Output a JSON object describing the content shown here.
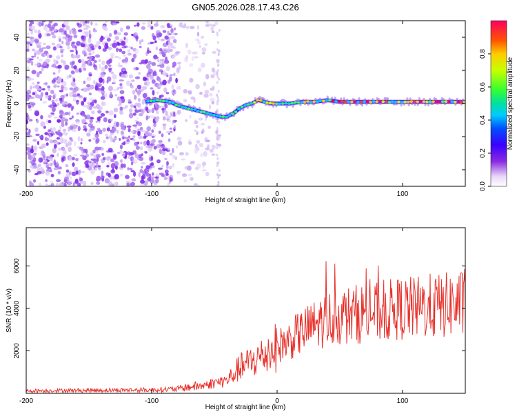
{
  "title": "GN05.2026.028.17.43.C26",
  "chart_data": [
    {
      "type": "heatmap",
      "name": "spectrogram",
      "xlabel": "Height of straight line (km)",
      "ylabel": "Frequency (Hz)",
      "xlim": [
        -200,
        150
      ],
      "ylim": [
        -50,
        50
      ],
      "xticks": [
        -200,
        -100,
        0,
        100
      ],
      "yticks": [
        -40,
        -20,
        0,
        20,
        40
      ],
      "colorbar": {
        "label": "Normalized spectral amplitude",
        "range": [
          0,
          1
        ],
        "ticks": [
          "0.0",
          "0.2",
          "0.4",
          "0.6",
          "0.8"
        ]
      },
      "ridge": {
        "x": [
          -105,
          -95,
          -85,
          -80,
          -70,
          -60,
          -50,
          -45,
          -40,
          -35,
          -30,
          -25,
          -20,
          -15,
          -10,
          -5,
          0,
          10,
          20,
          30,
          40,
          50,
          60,
          70,
          80,
          90,
          100,
          110,
          120,
          130,
          140,
          150
        ],
        "freq": [
          1,
          2,
          1,
          -1,
          -3,
          -5,
          -7,
          -8,
          -8,
          -6,
          -3,
          -1,
          0,
          2,
          1,
          0,
          0,
          0,
          1,
          1,
          2,
          1,
          1,
          1,
          1,
          1,
          1,
          1,
          1,
          1,
          1,
          1
        ]
      },
      "noise_region": [
        -200,
        -50
      ]
    },
    {
      "type": "line",
      "name": "snr",
      "xlabel": "Height of straight line (km)",
      "ylabel": "SNR (10 * v/v)",
      "xlim": [
        -200,
        150
      ],
      "ylim": [
        0,
        7800
      ],
      "xticks": [
        -200,
        -100,
        0,
        100
      ],
      "yticks": [
        2000,
        4000,
        6000
      ],
      "color": "#e8302a",
      "series": [
        {
          "name": "SNR envelope",
          "x": [
            -200,
            -150,
            -100,
            -80,
            -70,
            -60,
            -50,
            -40,
            -30,
            -20,
            -10,
            0,
            10,
            20,
            30,
            40,
            50,
            60,
            70,
            80,
            90,
            100,
            110,
            120,
            130,
            140,
            150
          ],
          "y": [
            120,
            140,
            160,
            200,
            300,
            350,
            500,
            600,
            1200,
            1500,
            1800,
            2200,
            2500,
            2900,
            3200,
            3500,
            3600,
            3700,
            3800,
            3800,
            3900,
            4000,
            4000,
            4100,
            4100,
            4200,
            4200
          ]
        }
      ]
    }
  ]
}
